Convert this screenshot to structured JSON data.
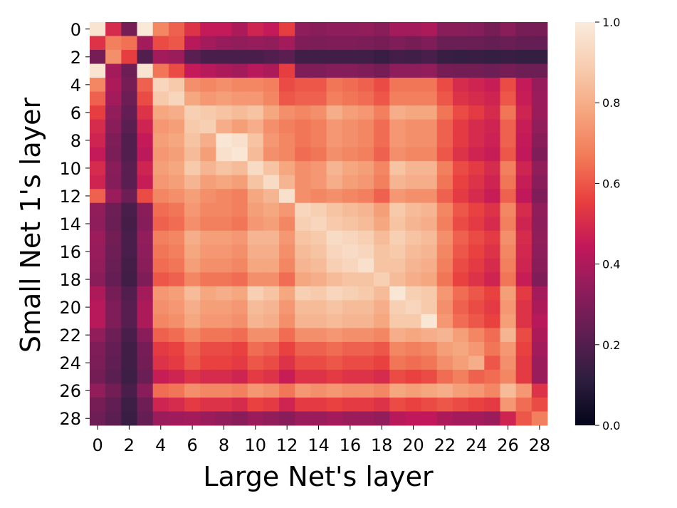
{
  "chart_data": {
    "type": "heatmap",
    "title": "",
    "xlabel": "Large Net's layer",
    "ylabel": "Small Net 1's layer",
    "xticklabels": [
      "0",
      "2",
      "4",
      "6",
      "8",
      "10",
      "12",
      "14",
      "16",
      "18",
      "20",
      "22",
      "24",
      "26",
      "28"
    ],
    "yticklabels": [
      "0",
      "2",
      "4",
      "6",
      "8",
      "10",
      "12",
      "14",
      "16",
      "18",
      "20",
      "22",
      "24",
      "26",
      "28"
    ],
    "rows": 29,
    "cols": 29,
    "colorbar": {
      "min": 0.0,
      "max": 1.0,
      "ticklabels": [
        "0.0",
        "0.2",
        "0.4",
        "0.6",
        "0.8",
        "1.0"
      ],
      "colormap": "rocket",
      "stops": [
        "#03051a",
        "#2c1e3e",
        "#5c1e51",
        "#8e1d5b",
        "#c2185a",
        "#e83f3f",
        "#f27a58",
        "#f5a67f",
        "#f7cdb0",
        "#faebdd"
      ]
    },
    "values": [
      [
        0.97,
        0.5,
        0.28,
        0.99,
        0.7,
        0.62,
        0.52,
        0.45,
        0.45,
        0.4,
        0.48,
        0.45,
        0.55,
        0.33,
        0.32,
        0.33,
        0.33,
        0.34,
        0.32,
        0.38,
        0.38,
        0.4,
        0.32,
        0.32,
        0.31,
        0.28,
        0.32,
        0.28,
        0.28
      ],
      [
        0.52,
        0.68,
        0.65,
        0.38,
        0.58,
        0.6,
        0.42,
        0.38,
        0.35,
        0.34,
        0.35,
        0.34,
        0.38,
        0.3,
        0.29,
        0.3,
        0.3,
        0.29,
        0.28,
        0.3,
        0.28,
        0.3,
        0.25,
        0.25,
        0.25,
        0.24,
        0.25,
        0.24,
        0.24
      ],
      [
        0.28,
        0.72,
        0.55,
        0.2,
        0.38,
        0.36,
        0.22,
        0.18,
        0.18,
        0.18,
        0.18,
        0.2,
        0.22,
        0.16,
        0.16,
        0.16,
        0.16,
        0.16,
        0.14,
        0.17,
        0.16,
        0.18,
        0.14,
        0.13,
        0.14,
        0.13,
        0.14,
        0.13,
        0.13
      ],
      [
        0.97,
        0.38,
        0.26,
        0.97,
        0.66,
        0.58,
        0.45,
        0.42,
        0.4,
        0.38,
        0.42,
        0.4,
        0.55,
        0.3,
        0.3,
        0.31,
        0.31,
        0.3,
        0.28,
        0.33,
        0.33,
        0.34,
        0.28,
        0.27,
        0.27,
        0.26,
        0.28,
        0.26,
        0.26
      ],
      [
        0.7,
        0.4,
        0.28,
        0.62,
        0.92,
        0.88,
        0.72,
        0.7,
        0.72,
        0.7,
        0.7,
        0.68,
        0.58,
        0.6,
        0.6,
        0.66,
        0.64,
        0.62,
        0.58,
        0.66,
        0.66,
        0.66,
        0.58,
        0.5,
        0.48,
        0.46,
        0.58,
        0.45,
        0.35
      ],
      [
        0.62,
        0.38,
        0.26,
        0.58,
        0.88,
        0.92,
        0.78,
        0.74,
        0.76,
        0.74,
        0.74,
        0.7,
        0.6,
        0.62,
        0.62,
        0.68,
        0.66,
        0.64,
        0.6,
        0.68,
        0.68,
        0.68,
        0.6,
        0.52,
        0.5,
        0.48,
        0.6,
        0.46,
        0.36
      ],
      [
        0.55,
        0.34,
        0.24,
        0.52,
        0.78,
        0.8,
        0.9,
        0.88,
        0.86,
        0.84,
        0.86,
        0.78,
        0.72,
        0.7,
        0.72,
        0.8,
        0.76,
        0.74,
        0.68,
        0.8,
        0.78,
        0.78,
        0.66,
        0.58,
        0.54,
        0.5,
        0.66,
        0.48,
        0.36
      ],
      [
        0.5,
        0.32,
        0.22,
        0.48,
        0.74,
        0.76,
        0.88,
        0.9,
        0.8,
        0.76,
        0.8,
        0.72,
        0.68,
        0.66,
        0.68,
        0.74,
        0.72,
        0.7,
        0.64,
        0.74,
        0.72,
        0.72,
        0.62,
        0.54,
        0.5,
        0.48,
        0.62,
        0.46,
        0.34
      ],
      [
        0.48,
        0.3,
        0.2,
        0.45,
        0.76,
        0.78,
        0.86,
        0.8,
        0.98,
        0.96,
        0.86,
        0.74,
        0.7,
        0.66,
        0.68,
        0.74,
        0.72,
        0.7,
        0.64,
        0.74,
        0.72,
        0.72,
        0.62,
        0.54,
        0.5,
        0.47,
        0.62,
        0.45,
        0.32
      ],
      [
        0.45,
        0.29,
        0.2,
        0.43,
        0.74,
        0.76,
        0.84,
        0.76,
        0.96,
        0.98,
        0.84,
        0.72,
        0.7,
        0.64,
        0.66,
        0.72,
        0.7,
        0.68,
        0.62,
        0.72,
        0.7,
        0.7,
        0.6,
        0.52,
        0.48,
        0.46,
        0.6,
        0.44,
        0.3
      ],
      [
        0.5,
        0.32,
        0.22,
        0.48,
        0.76,
        0.78,
        0.88,
        0.82,
        0.86,
        0.84,
        0.94,
        0.86,
        0.78,
        0.72,
        0.74,
        0.82,
        0.78,
        0.76,
        0.7,
        0.86,
        0.82,
        0.82,
        0.68,
        0.58,
        0.54,
        0.5,
        0.68,
        0.48,
        0.34
      ],
      [
        0.48,
        0.31,
        0.22,
        0.46,
        0.74,
        0.76,
        0.82,
        0.76,
        0.78,
        0.76,
        0.86,
        0.94,
        0.82,
        0.72,
        0.74,
        0.8,
        0.76,
        0.74,
        0.68,
        0.82,
        0.8,
        0.8,
        0.66,
        0.56,
        0.52,
        0.48,
        0.66,
        0.46,
        0.32
      ],
      [
        0.62,
        0.36,
        0.26,
        0.58,
        0.7,
        0.72,
        0.76,
        0.72,
        0.7,
        0.68,
        0.78,
        0.82,
        0.96,
        0.72,
        0.7,
        0.72,
        0.7,
        0.68,
        0.62,
        0.74,
        0.72,
        0.72,
        0.62,
        0.54,
        0.5,
        0.46,
        0.62,
        0.44,
        0.3
      ],
      [
        0.34,
        0.26,
        0.18,
        0.32,
        0.64,
        0.66,
        0.74,
        0.7,
        0.7,
        0.68,
        0.76,
        0.78,
        0.74,
        0.92,
        0.9,
        0.86,
        0.84,
        0.82,
        0.76,
        0.88,
        0.84,
        0.82,
        0.7,
        0.6,
        0.56,
        0.52,
        0.7,
        0.5,
        0.34
      ],
      [
        0.33,
        0.25,
        0.17,
        0.31,
        0.62,
        0.64,
        0.72,
        0.68,
        0.68,
        0.66,
        0.74,
        0.76,
        0.7,
        0.9,
        0.92,
        0.88,
        0.86,
        0.84,
        0.78,
        0.86,
        0.82,
        0.8,
        0.68,
        0.58,
        0.54,
        0.5,
        0.68,
        0.48,
        0.33
      ],
      [
        0.36,
        0.27,
        0.18,
        0.34,
        0.68,
        0.7,
        0.8,
        0.76,
        0.76,
        0.74,
        0.82,
        0.82,
        0.74,
        0.86,
        0.88,
        0.94,
        0.92,
        0.9,
        0.84,
        0.9,
        0.86,
        0.84,
        0.72,
        0.62,
        0.58,
        0.54,
        0.72,
        0.5,
        0.34
      ],
      [
        0.35,
        0.26,
        0.18,
        0.33,
        0.66,
        0.68,
        0.78,
        0.74,
        0.74,
        0.72,
        0.8,
        0.8,
        0.72,
        0.84,
        0.86,
        0.92,
        0.94,
        0.92,
        0.86,
        0.88,
        0.84,
        0.82,
        0.7,
        0.6,
        0.56,
        0.52,
        0.7,
        0.49,
        0.33
      ],
      [
        0.34,
        0.25,
        0.17,
        0.32,
        0.64,
        0.66,
        0.76,
        0.72,
        0.72,
        0.7,
        0.78,
        0.78,
        0.7,
        0.82,
        0.84,
        0.9,
        0.92,
        0.96,
        0.86,
        0.86,
        0.82,
        0.8,
        0.68,
        0.58,
        0.54,
        0.5,
        0.68,
        0.48,
        0.32
      ],
      [
        0.32,
        0.24,
        0.16,
        0.3,
        0.6,
        0.62,
        0.7,
        0.66,
        0.66,
        0.64,
        0.72,
        0.72,
        0.64,
        0.78,
        0.8,
        0.84,
        0.86,
        0.86,
        0.9,
        0.84,
        0.8,
        0.78,
        0.66,
        0.56,
        0.52,
        0.48,
        0.66,
        0.46,
        0.3
      ],
      [
        0.4,
        0.28,
        0.2,
        0.38,
        0.74,
        0.76,
        0.84,
        0.78,
        0.8,
        0.78,
        0.9,
        0.86,
        0.78,
        0.9,
        0.88,
        0.92,
        0.9,
        0.88,
        0.84,
        0.98,
        0.9,
        0.88,
        0.74,
        0.64,
        0.6,
        0.56,
        0.76,
        0.54,
        0.38
      ],
      [
        0.42,
        0.3,
        0.21,
        0.4,
        0.72,
        0.74,
        0.8,
        0.76,
        0.76,
        0.74,
        0.84,
        0.82,
        0.74,
        0.84,
        0.84,
        0.86,
        0.84,
        0.84,
        0.8,
        0.9,
        0.92,
        0.88,
        0.72,
        0.62,
        0.58,
        0.54,
        0.74,
        0.52,
        0.4
      ],
      [
        0.42,
        0.3,
        0.21,
        0.4,
        0.7,
        0.72,
        0.78,
        0.74,
        0.74,
        0.72,
        0.82,
        0.8,
        0.72,
        0.82,
        0.82,
        0.84,
        0.82,
        0.82,
        0.78,
        0.88,
        0.88,
        0.98,
        0.74,
        0.64,
        0.6,
        0.56,
        0.76,
        0.52,
        0.42
      ],
      [
        0.34,
        0.26,
        0.18,
        0.32,
        0.62,
        0.64,
        0.7,
        0.66,
        0.66,
        0.64,
        0.72,
        0.72,
        0.64,
        0.72,
        0.72,
        0.74,
        0.72,
        0.72,
        0.7,
        0.8,
        0.78,
        0.8,
        0.82,
        0.76,
        0.7,
        0.64,
        0.82,
        0.58,
        0.4
      ],
      [
        0.3,
        0.24,
        0.16,
        0.28,
        0.54,
        0.56,
        0.62,
        0.58,
        0.58,
        0.56,
        0.64,
        0.62,
        0.56,
        0.62,
        0.62,
        0.64,
        0.62,
        0.62,
        0.6,
        0.7,
        0.68,
        0.7,
        0.76,
        0.78,
        0.74,
        0.66,
        0.74,
        0.56,
        0.38
      ],
      [
        0.29,
        0.23,
        0.16,
        0.27,
        0.52,
        0.54,
        0.6,
        0.56,
        0.56,
        0.54,
        0.6,
        0.58,
        0.52,
        0.58,
        0.58,
        0.6,
        0.58,
        0.58,
        0.56,
        0.66,
        0.64,
        0.66,
        0.72,
        0.76,
        0.8,
        0.6,
        0.72,
        0.54,
        0.36
      ],
      [
        0.27,
        0.22,
        0.15,
        0.25,
        0.46,
        0.48,
        0.52,
        0.5,
        0.5,
        0.48,
        0.54,
        0.52,
        0.46,
        0.52,
        0.52,
        0.54,
        0.52,
        0.52,
        0.5,
        0.58,
        0.56,
        0.58,
        0.64,
        0.68,
        0.62,
        0.64,
        0.7,
        0.54,
        0.36
      ],
      [
        0.34,
        0.27,
        0.18,
        0.32,
        0.64,
        0.66,
        0.72,
        0.7,
        0.7,
        0.68,
        0.74,
        0.72,
        0.66,
        0.74,
        0.72,
        0.74,
        0.72,
        0.72,
        0.7,
        0.78,
        0.76,
        0.78,
        0.8,
        0.76,
        0.74,
        0.7,
        0.84,
        0.74,
        0.52
      ],
      [
        0.28,
        0.23,
        0.15,
        0.26,
        0.48,
        0.5,
        0.54,
        0.52,
        0.52,
        0.5,
        0.56,
        0.54,
        0.48,
        0.54,
        0.54,
        0.56,
        0.54,
        0.54,
        0.52,
        0.58,
        0.56,
        0.58,
        0.6,
        0.58,
        0.56,
        0.54,
        0.74,
        0.64,
        0.58
      ],
      [
        0.26,
        0.22,
        0.14,
        0.24,
        0.36,
        0.37,
        0.38,
        0.36,
        0.34,
        0.32,
        0.36,
        0.34,
        0.32,
        0.36,
        0.36,
        0.38,
        0.36,
        0.36,
        0.34,
        0.42,
        0.44,
        0.44,
        0.4,
        0.38,
        0.38,
        0.36,
        0.48,
        0.6,
        0.68
      ]
    ]
  }
}
